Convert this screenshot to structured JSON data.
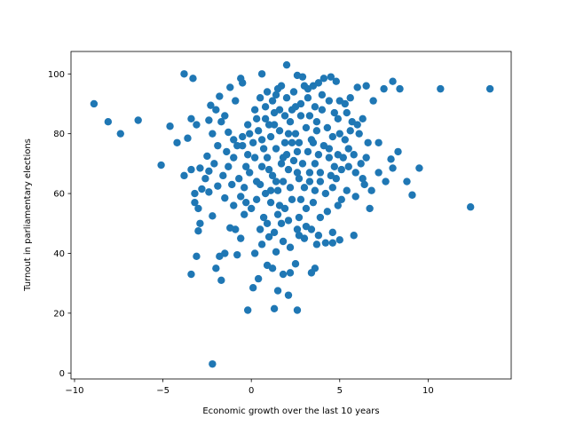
{
  "chart_data": {
    "type": "scatter",
    "title": "",
    "xlabel": "Economic growth over the last 10 years",
    "ylabel": "Turnout in parliamentary elections",
    "xlim": [
      -10.2,
      14.7
    ],
    "ylim": [
      -2,
      107.5
    ],
    "xticks": [
      -10,
      -5,
      0,
      5,
      10
    ],
    "yticks": [
      0,
      20,
      40,
      60,
      80,
      100
    ],
    "grid": false,
    "marker_color": "#1f77b4",
    "series": [
      {
        "points": [
          [
            -8.9,
            90
          ],
          [
            -8.1,
            84
          ],
          [
            -7.4,
            80
          ],
          [
            -6.4,
            84.5
          ],
          [
            -5.1,
            69.5
          ],
          [
            -4.6,
            82.5
          ],
          [
            -4.2,
            77
          ],
          [
            -3.8,
            100
          ],
          [
            -3.3,
            98.5
          ],
          [
            -3.6,
            78.5
          ],
          [
            -3.4,
            85
          ],
          [
            -3.8,
            66
          ],
          [
            -3.4,
            68
          ],
          [
            -3.1,
            83
          ],
          [
            -3.2,
            60
          ],
          [
            -2.9,
            68.5
          ],
          [
            -2.8,
            61.5
          ],
          [
            -3.2,
            57
          ],
          [
            -3.0,
            55
          ],
          [
            -2.9,
            50
          ],
          [
            -3.0,
            47.5
          ],
          [
            -3.1,
            39
          ],
          [
            -3.4,
            33
          ],
          [
            -2.2,
            3
          ],
          [
            -2.0,
            35
          ],
          [
            -1.7,
            31
          ],
          [
            -2.2,
            52.5
          ],
          [
            -2.4,
            60.5
          ],
          [
            -2.4,
            67.5
          ],
          [
            -2.5,
            72.5
          ],
          [
            -2.2,
            80
          ],
          [
            -2.4,
            84.5
          ],
          [
            -2.3,
            89.5
          ],
          [
            -1.8,
            92.5
          ],
          [
            -1.2,
            95.5
          ],
          [
            -0.6,
            98.5
          ],
          [
            -0.5,
            97
          ],
          [
            0.6,
            100
          ],
          [
            -1.5,
            86
          ],
          [
            -1.3,
            80.5
          ],
          [
            -1.0,
            78
          ],
          [
            -0.5,
            76
          ],
          [
            -0.2,
            83
          ],
          [
            0.2,
            88
          ],
          [
            0.5,
            92
          ],
          [
            0.8,
            85
          ],
          [
            1.1,
            79
          ],
          [
            1.4,
            93
          ],
          [
            1.7,
            96
          ],
          [
            2.0,
            103
          ],
          [
            2.3,
            88
          ],
          [
            2.6,
            99.5
          ],
          [
            2.9,
            99
          ],
          [
            3.2,
            95
          ],
          [
            3.5,
            96
          ],
          [
            3.8,
            97
          ],
          [
            4.1,
            98.5
          ],
          [
            4.5,
            99
          ],
          [
            4.8,
            97.5
          ],
          [
            5.0,
            91
          ],
          [
            5.3,
            90
          ],
          [
            5.6,
            92
          ],
          [
            6.0,
            95.5
          ],
          [
            6.5,
            96
          ],
          [
            6.9,
            91
          ],
          [
            7.5,
            95
          ],
          [
            8.0,
            97.5
          ],
          [
            8.4,
            95
          ],
          [
            10.7,
            95
          ],
          [
            13.5,
            95
          ],
          [
            4.9,
            85
          ],
          [
            5.4,
            87
          ],
          [
            5.7,
            84
          ],
          [
            6.1,
            80
          ],
          [
            6.6,
            77
          ],
          [
            7.2,
            77
          ],
          [
            7.9,
            71.5
          ],
          [
            8.3,
            74
          ],
          [
            8.8,
            64
          ],
          [
            9.1,
            59.5
          ],
          [
            9.5,
            68.5
          ],
          [
            12.4,
            55.5
          ],
          [
            6.7,
            55
          ],
          [
            7.6,
            64
          ],
          [
            8.0,
            68.5
          ],
          [
            7.2,
            67
          ],
          [
            6.8,
            61
          ],
          [
            6.4,
            63
          ],
          [
            5.9,
            67
          ],
          [
            5.5,
            69
          ],
          [
            5.1,
            68
          ],
          [
            4.8,
            65
          ],
          [
            4.6,
            62
          ],
          [
            4.9,
            56
          ],
          [
            4.6,
            47
          ],
          [
            5.0,
            44.5
          ],
          [
            4.6,
            43.5
          ],
          [
            5.8,
            46
          ],
          [
            4.2,
            43.5
          ],
          [
            3.7,
            43
          ],
          [
            3.6,
            35
          ],
          [
            3.4,
            33.5
          ],
          [
            2.6,
            21
          ],
          [
            2.1,
            26
          ],
          [
            1.3,
            21.5
          ],
          [
            -0.2,
            21
          ],
          [
            0.1,
            28.5
          ],
          [
            0.4,
            31.5
          ],
          [
            0.9,
            36
          ],
          [
            1.2,
            35
          ],
          [
            1.5,
            27.5
          ],
          [
            1.8,
            33
          ],
          [
            2.2,
            33.5
          ],
          [
            2.5,
            36.5
          ],
          [
            0.2,
            40
          ],
          [
            0.6,
            43
          ],
          [
            1.0,
            45.5
          ],
          [
            1.4,
            40.5
          ],
          [
            1.8,
            44
          ],
          [
            2.2,
            42
          ],
          [
            2.7,
            46
          ],
          [
            3.1,
            49
          ],
          [
            -0.6,
            45
          ],
          [
            -0.9,
            48
          ],
          [
            -1.2,
            48.5
          ],
          [
            -1.5,
            40
          ],
          [
            -1.8,
            39
          ],
          [
            -0.8,
            39.5
          ],
          [
            -0.4,
            53
          ],
          [
            0.0,
            55
          ],
          [
            0.3,
            58
          ],
          [
            0.7,
            52
          ],
          [
            1.1,
            57
          ],
          [
            1.5,
            53
          ],
          [
            1.9,
            55
          ],
          [
            2.3,
            58
          ],
          [
            2.7,
            52
          ],
          [
            3.1,
            55
          ],
          [
            3.5,
            57
          ],
          [
            3.9,
            52
          ],
          [
            4.3,
            54
          ],
          [
            -1.0,
            56
          ],
          [
            -1.5,
            58.5
          ],
          [
            -1.9,
            62.5
          ],
          [
            -1.6,
            66
          ],
          [
            -1.3,
            69
          ],
          [
            -1.0,
            72
          ],
          [
            -0.7,
            65
          ],
          [
            -0.4,
            62
          ],
          [
            -0.1,
            67
          ],
          [
            0.3,
            64
          ],
          [
            0.6,
            69
          ],
          [
            0.9,
            72
          ],
          [
            1.2,
            66
          ],
          [
            1.5,
            61
          ],
          [
            1.8,
            64
          ],
          [
            2.1,
            68
          ],
          [
            2.4,
            71
          ],
          [
            2.7,
            65
          ],
          [
            3.0,
            62
          ],
          [
            3.3,
            67
          ],
          [
            3.6,
            70
          ],
          [
            3.9,
            64
          ],
          [
            4.2,
            60
          ],
          [
            4.5,
            66
          ],
          [
            -0.8,
            76
          ],
          [
            -0.5,
            79
          ],
          [
            -0.2,
            73
          ],
          [
            0.1,
            77
          ],
          [
            0.4,
            81
          ],
          [
            0.7,
            75
          ],
          [
            1.0,
            83
          ],
          [
            1.3,
            87
          ],
          [
            1.6,
            81
          ],
          [
            1.9,
            77
          ],
          [
            2.2,
            84
          ],
          [
            2.5,
            80
          ],
          [
            2.8,
            86
          ],
          [
            3.1,
            82
          ],
          [
            3.4,
            78
          ],
          [
            3.7,
            84
          ],
          [
            4.0,
            88
          ],
          [
            4.3,
            82
          ],
          [
            4.6,
            79
          ],
          [
            -1.4,
            74
          ],
          [
            -1.9,
            76
          ],
          [
            -2.1,
            70
          ],
          [
            -2.6,
            65
          ],
          [
            -1.1,
            63
          ],
          [
            -0.6,
            59
          ],
          [
            0.5,
            48
          ],
          [
            0.9,
            50
          ],
          [
            1.3,
            47
          ],
          [
            1.7,
            50
          ],
          [
            2.1,
            51
          ],
          [
            2.6,
            48
          ],
          [
            3.0,
            45
          ],
          [
            3.4,
            48
          ],
          [
            3.8,
            46
          ],
          [
            0.3,
            85
          ],
          [
            0.8,
            89
          ],
          [
            1.2,
            91
          ],
          [
            1.6,
            88
          ],
          [
            2.0,
            92
          ],
          [
            2.4,
            94
          ],
          [
            2.8,
            90
          ],
          [
            3.2,
            92
          ],
          [
            3.6,
            89
          ],
          [
            4.0,
            93
          ],
          [
            4.4,
            91
          ],
          [
            1.4,
            75
          ],
          [
            1.7,
            70
          ],
          [
            2.0,
            73
          ],
          [
            2.3,
            77
          ],
          [
            2.6,
            74
          ],
          [
            2.9,
            70
          ],
          [
            3.2,
            74
          ],
          [
            3.5,
            77
          ],
          [
            3.8,
            73
          ],
          [
            4.1,
            76
          ],
          [
            4.4,
            72
          ],
          [
            5.2,
            72
          ],
          [
            5.5,
            75
          ],
          [
            5.8,
            73
          ],
          [
            6.2,
            70
          ],
          [
            6.5,
            72
          ],
          [
            5.3,
            78
          ],
          [
            5.6,
            81
          ],
          [
            6.0,
            83
          ],
          [
            6.3,
            85
          ],
          [
            5.1,
            58
          ],
          [
            5.4,
            61
          ],
          [
            5.9,
            59
          ],
          [
            6.3,
            65
          ],
          [
            1.1,
            61
          ],
          [
            0.5,
            63
          ],
          [
            -0.3,
            69
          ],
          [
            2.8,
            58
          ],
          [
            3.6,
            61
          ],
          [
            1.6,
            56
          ],
          [
            0.2,
            72
          ],
          [
            1.0,
            68
          ],
          [
            1.9,
            86
          ],
          [
            2.5,
            89
          ],
          [
            3.0,
            96
          ],
          [
            1.5,
            95
          ],
          [
            0.9,
            94
          ],
          [
            4.7,
            87
          ],
          [
            5.0,
            80
          ],
          [
            4.4,
            75
          ],
          [
            4.9,
            73
          ],
          [
            2.1,
            80
          ],
          [
            1.3,
            83
          ],
          [
            0.6,
            78
          ],
          [
            -0.1,
            80
          ],
          [
            -1.7,
            84
          ],
          [
            -2.0,
            88
          ],
          [
            -0.9,
            91
          ],
          [
            3.3,
            86
          ],
          [
            3.7,
            81
          ],
          [
            2.7,
            77
          ],
          [
            1.8,
            72
          ],
          [
            2.2,
            62
          ],
          [
            3.3,
            64
          ],
          [
            0.8,
            60
          ],
          [
            -0.3,
            57
          ],
          [
            1.4,
            64
          ],
          [
            2.6,
            67
          ],
          [
            3.9,
            67
          ],
          [
            4.7,
            69
          ]
        ]
      }
    ]
  }
}
